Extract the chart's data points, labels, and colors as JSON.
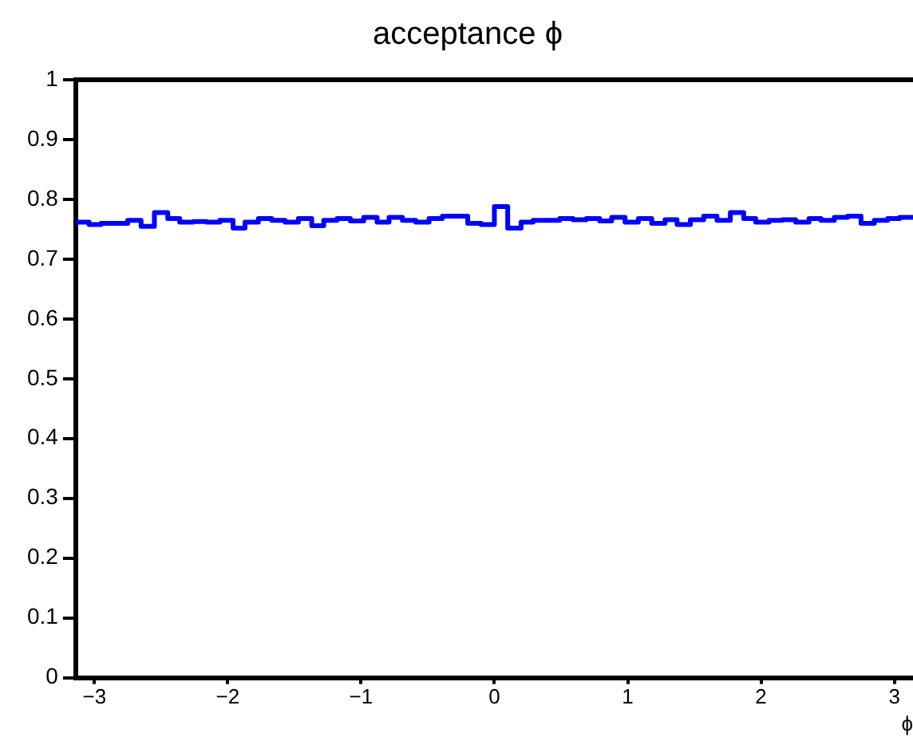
{
  "chart_data": {
    "type": "histogram",
    "title": "acceptance ϕ",
    "xlabel": "ϕ",
    "bins": [
      -3.14,
      -3.04,
      -2.95,
      -2.85,
      -2.75,
      -2.65,
      -2.55,
      -2.45,
      -2.36,
      -2.26,
      -2.16,
      -2.06,
      -1.96,
      -1.87,
      -1.77,
      -1.67,
      -1.57,
      -1.47,
      -1.37,
      -1.28,
      -1.18,
      -1.08,
      -0.98,
      -0.88,
      -0.79,
      -0.69,
      -0.59,
      -0.49,
      -0.39,
      -0.29,
      -0.2,
      -0.1,
      0,
      0.1,
      0.2,
      0.29,
      0.39,
      0.49,
      0.59,
      0.69,
      0.79,
      0.88,
      0.98,
      1.08,
      1.18,
      1.28,
      1.37,
      1.47,
      1.57,
      1.67,
      1.77,
      1.87,
      1.96,
      2.06,
      2.16,
      2.26,
      2.36,
      2.45,
      2.55,
      2.65,
      2.75,
      2.85,
      2.95,
      3.04,
      3.14
    ],
    "values": [
      0.762,
      0.758,
      0.76,
      0.76,
      0.765,
      0.755,
      0.778,
      0.768,
      0.762,
      0.763,
      0.762,
      0.765,
      0.752,
      0.762,
      0.768,
      0.765,
      0.762,
      0.768,
      0.756,
      0.765,
      0.768,
      0.764,
      0.77,
      0.762,
      0.77,
      0.765,
      0.762,
      0.768,
      0.772,
      0.772,
      0.76,
      0.758,
      0.788,
      0.752,
      0.762,
      0.765,
      0.765,
      0.768,
      0.766,
      0.768,
      0.764,
      0.77,
      0.762,
      0.768,
      0.76,
      0.766,
      0.758,
      0.766,
      0.772,
      0.765,
      0.778,
      0.768,
      0.762,
      0.765,
      0.766,
      0.762,
      0.768,
      0.765,
      0.77,
      0.772,
      0.76,
      0.765,
      0.768,
      0.77
    ],
    "color": "#0000ff",
    "xlim": [
      -3.14,
      3.14
    ],
    "xticks": [
      {
        "value": -3,
        "label": "−3"
      },
      {
        "value": -2,
        "label": "−2"
      },
      {
        "value": -1,
        "label": "−1"
      },
      0,
      1,
      2,
      3
    ],
    "ylim": [
      0,
      1
    ],
    "yticks": [
      0,
      0.1,
      0.2,
      0.3,
      0.4,
      0.5,
      0.6,
      0.7,
      0.8,
      0.9,
      1
    ]
  }
}
